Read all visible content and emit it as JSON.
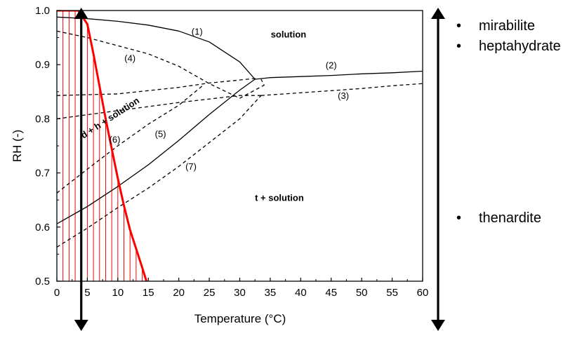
{
  "chart_data": {
    "type": "line",
    "xlabel": "Temperature (°C)",
    "ylabel": "RH (-)",
    "xlim": [
      0,
      60
    ],
    "ylim": [
      0.5,
      1.0
    ],
    "xticks": [
      0,
      5,
      10,
      15,
      20,
      25,
      30,
      35,
      40,
      45,
      50,
      55,
      60
    ],
    "yticks": [
      0.5,
      0.6,
      0.7,
      0.8,
      0.9,
      1.0
    ],
    "grid": false,
    "series": [
      {
        "label": "(1)",
        "style": "solid",
        "color": "#000000",
        "points": [
          [
            0,
            0.988
          ],
          [
            5,
            0.985
          ],
          [
            10,
            0.98
          ],
          [
            15,
            0.973
          ],
          [
            20,
            0.962
          ],
          [
            25,
            0.942
          ],
          [
            30,
            0.905
          ],
          [
            32.5,
            0.873
          ]
        ]
      },
      {
        "label": "(2)",
        "style": "solid",
        "color": "#000000",
        "points": [
          [
            32.5,
            0.873
          ],
          [
            35,
            0.876
          ],
          [
            40,
            0.878
          ],
          [
            45,
            0.88
          ],
          [
            50,
            0.883
          ],
          [
            55,
            0.885
          ],
          [
            60,
            0.888
          ]
        ]
      },
      {
        "label": "(3)",
        "style": "dashed",
        "color": "#000000",
        "points": [
          [
            33.5,
            0.843
          ],
          [
            40,
            0.848
          ],
          [
            45,
            0.852
          ],
          [
            50,
            0.856
          ],
          [
            55,
            0.861
          ],
          [
            60,
            0.865
          ]
        ]
      },
      {
        "label": "(4)",
        "style": "dashed",
        "color": "#000000",
        "points": [
          [
            0,
            0.962
          ],
          [
            5,
            0.95
          ],
          [
            10,
            0.935
          ],
          [
            15,
            0.92
          ],
          [
            20,
            0.897
          ],
          [
            25,
            0.865
          ],
          [
            30,
            0.838
          ],
          [
            34,
            0.862
          ],
          [
            33.5,
            0.873
          ]
        ]
      },
      {
        "label": "(5)",
        "style": "solid",
        "color": "#000000",
        "points": [
          [
            0,
            0.606
          ],
          [
            5,
            0.638
          ],
          [
            10,
            0.675
          ],
          [
            15,
            0.715
          ],
          [
            20,
            0.76
          ],
          [
            25,
            0.808
          ],
          [
            30,
            0.853
          ],
          [
            32.5,
            0.873
          ]
        ]
      },
      {
        "label": "(6)",
        "style": "dashed",
        "color": "#000000",
        "points": [
          [
            0,
            0.663
          ],
          [
            5,
            0.707
          ],
          [
            10,
            0.75
          ],
          [
            15,
            0.79
          ],
          [
            20,
            0.825
          ],
          [
            24,
            0.862
          ]
        ]
      },
      {
        "label": "(7)",
        "style": "dashed",
        "color": "#000000",
        "points": [
          [
            0,
            0.563
          ],
          [
            5,
            0.598
          ],
          [
            10,
            0.636
          ],
          [
            15,
            0.672
          ],
          [
            20,
            0.712
          ],
          [
            25,
            0.756
          ],
          [
            30,
            0.8
          ],
          [
            33.5,
            0.843
          ]
        ]
      },
      {
        "label": "",
        "style": "dashed",
        "color": "#000000",
        "points": [
          [
            0,
            0.843
          ],
          [
            10,
            0.846
          ],
          [
            20,
            0.858
          ],
          [
            25,
            0.866
          ],
          [
            33,
            0.875
          ]
        ]
      },
      {
        "label": "",
        "style": "dashed",
        "color": "#000000",
        "points": [
          [
            0,
            0.8
          ],
          [
            10,
            0.815
          ],
          [
            20,
            0.83
          ],
          [
            30,
            0.843
          ],
          [
            33.5,
            0.843
          ]
        ]
      },
      {
        "label": "",
        "style": "solid",
        "color": "#ff0000",
        "width": 3,
        "points": [
          [
            3.5,
            1.0
          ],
          [
            5,
            0.975
          ],
          [
            6,
            0.92
          ],
          [
            7,
            0.86
          ],
          [
            8,
            0.8
          ],
          [
            9,
            0.745
          ],
          [
            10,
            0.69
          ],
          [
            11,
            0.64
          ],
          [
            12,
            0.595
          ],
          [
            13,
            0.56
          ],
          [
            14,
            0.525
          ],
          [
            14.7,
            0.5
          ]
        ]
      }
    ],
    "hatch": {
      "color": "#ff0000",
      "x_start": 0,
      "x_end": 14,
      "x_step": 1,
      "boundary": [
        [
          0,
          1.0
        ],
        [
          3.5,
          1.0
        ],
        [
          5,
          0.975
        ],
        [
          6,
          0.92
        ],
        [
          7,
          0.86
        ],
        [
          8,
          0.8
        ],
        [
          9,
          0.745
        ],
        [
          10,
          0.69
        ],
        [
          11,
          0.64
        ],
        [
          12,
          0.595
        ],
        [
          13,
          0.56
        ],
        [
          14,
          0.525
        ],
        [
          14.7,
          0.5
        ]
      ]
    },
    "plateau": {
      "color": "#ff0000",
      "x_start": 0,
      "x_end": 3.5,
      "y": 1.0
    },
    "annotations": [
      {
        "text": "(1)",
        "x": 23,
        "y": 0.955
      },
      {
        "text": "(2)",
        "x": 45,
        "y": 0.893
      },
      {
        "text": "(3)",
        "x": 47,
        "y": 0.837
      },
      {
        "text": "(4)",
        "x": 12,
        "y": 0.906
      },
      {
        "text": "(5)",
        "x": 17,
        "y": 0.766
      },
      {
        "text": "(6)",
        "x": 9.5,
        "y": 0.756
      },
      {
        "text": "(7)",
        "x": 22,
        "y": 0.706
      }
    ],
    "regions": [
      {
        "text": "solution",
        "x": 38,
        "y": 0.95
      },
      {
        "text": "t + solution",
        "x": 36.5,
        "y": 0.648
      },
      {
        "text": "d + h + solution",
        "x": 9,
        "y": 0.797,
        "rotate": -33
      }
    ],
    "vertical_arrows": [
      {
        "x": 4,
        "y_from": 1.0,
        "y_to": 0.5,
        "color": "#000000",
        "both_ends": true
      }
    ],
    "outer_arrow": {
      "color": "#000000",
      "both_ends": true
    }
  },
  "legend_panel": {
    "upper_items": [
      "mirabilite",
      "heptahydrate"
    ],
    "lower_items": [
      "thenardite"
    ],
    "bullet": "•"
  }
}
